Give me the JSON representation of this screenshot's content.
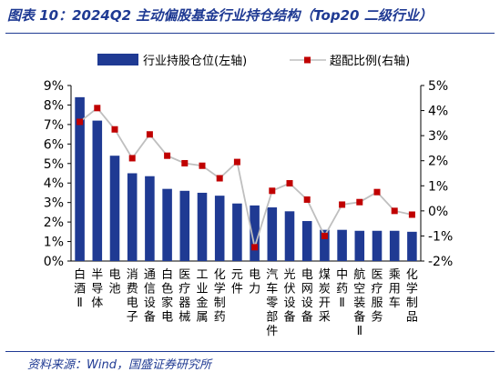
{
  "header": {
    "title": "图表 10：2024Q2 主动偏股基金行业持仓结构（Top20 二级行业）"
  },
  "footer": {
    "source": "资料来源：Wind，国盛证券研究所"
  },
  "colors": {
    "bar": "#1f3a93",
    "line": "#bfbfbf",
    "marker": "#c00000",
    "title": "#1f3a93"
  },
  "chart_data": {
    "type": "bar",
    "categories": [
      "白酒Ⅱ",
      "半导体",
      "电池",
      "消费电子",
      "通信设备",
      "白色家电",
      "医疗器械",
      "工业金属",
      "化学制药",
      "元件",
      "电力",
      "汽车零部件",
      "光伏设备",
      "电网设备",
      "煤炭开采",
      "中药Ⅱ",
      "航空装备Ⅱ",
      "医疗服务",
      "乘用车",
      "化学制品"
    ],
    "series": [
      {
        "name": "行业持股仓位(左轴)",
        "type": "bar",
        "axis": "left",
        "values": [
          8.4,
          7.2,
          5.4,
          4.5,
          4.35,
          3.7,
          3.6,
          3.5,
          3.35,
          2.95,
          2.85,
          2.75,
          2.55,
          2.05,
          1.6,
          1.6,
          1.55,
          1.55,
          1.55,
          1.5
        ]
      },
      {
        "name": "超配比例(右轴)",
        "type": "line",
        "axis": "right",
        "values": [
          3.55,
          4.1,
          3.25,
          2.1,
          3.05,
          2.2,
          1.9,
          1.8,
          1.3,
          1.95,
          -1.45,
          0.8,
          1.1,
          0.45,
          -1.0,
          0.25,
          0.35,
          0.75,
          0.0,
          -0.15
        ]
      }
    ],
    "ylim_left": [
      0,
      9
    ],
    "ylim_right": [
      -2,
      5
    ],
    "yticks_left": [
      "0%",
      "1%",
      "2%",
      "3%",
      "4%",
      "5%",
      "6%",
      "7%",
      "8%",
      "9%"
    ],
    "yticks_right": [
      "-2%",
      "-1%",
      "0%",
      "1%",
      "2%",
      "3%",
      "4%",
      "5%"
    ],
    "legend_position": "top",
    "grid": false
  }
}
